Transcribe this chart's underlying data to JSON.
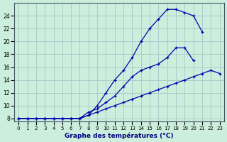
{
  "xlabel": "Graphe des températures (°C)",
  "background_color": "#cceedd",
  "grid_color": "#aacccc",
  "line_color": "#0000aa",
  "hours": [
    0,
    1,
    2,
    3,
    4,
    5,
    6,
    7,
    8,
    9,
    10,
    11,
    12,
    13,
    14,
    15,
    16,
    17,
    18,
    19,
    20,
    21,
    22,
    23
  ],
  "series_top": [
    8,
    8,
    8,
    8,
    8,
    8,
    8,
    8,
    8.5,
    10,
    12,
    14,
    15.5,
    17.5,
    20,
    22,
    23.5,
    25,
    25,
    24.5,
    24,
    21.5,
    null,
    null
  ],
  "series_mid": [
    8,
    8,
    8,
    8,
    8,
    8,
    8,
    8,
    9,
    9.5,
    10.5,
    11.5,
    13,
    14.5,
    15.5,
    16,
    16.5,
    17.5,
    19,
    19,
    17,
    null,
    null,
    null
  ],
  "series_bot": [
    8,
    8,
    8,
    8,
    8,
    8,
    8,
    8,
    8.5,
    9,
    9.5,
    10,
    10.5,
    11,
    11.5,
    12,
    12.5,
    13,
    13.5,
    14,
    14.5,
    15,
    15.5,
    15
  ],
  "ylim": [
    7.5,
    26
  ],
  "xlim": [
    -0.5,
    23.5
  ],
  "yticks": [
    8,
    10,
    12,
    14,
    16,
    18,
    20,
    22,
    24
  ],
  "xticks": [
    0,
    1,
    2,
    3,
    4,
    5,
    6,
    7,
    8,
    9,
    10,
    11,
    12,
    13,
    14,
    15,
    16,
    17,
    18,
    19,
    20,
    21,
    22,
    23
  ]
}
